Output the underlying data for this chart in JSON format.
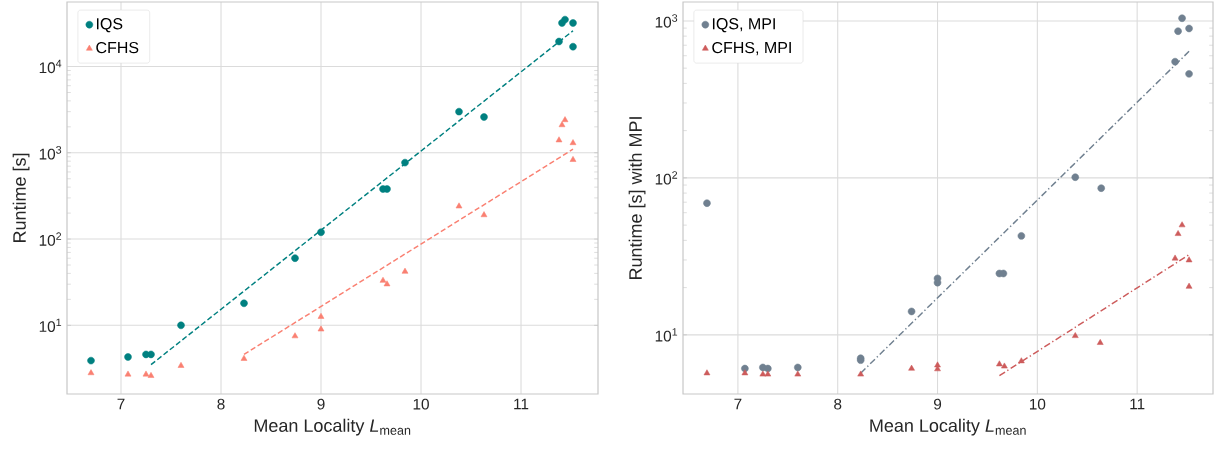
{
  "chart_data": [
    {
      "type": "scatter",
      "xlabel": "Mean Locality *L*$_{mean}$",
      "ylabel": "Runtime [s]",
      "log": "y",
      "grid": true,
      "legend": "top left",
      "xlim": [
        6.46,
        11.77
      ],
      "ylim": [
        1.6,
        56000
      ],
      "xticks": [
        7,
        8,
        9,
        10,
        11
      ],
      "yticks": [
        {
          "value": 10,
          "label": "10$^{1}$"
        },
        {
          "value": 100,
          "label": "10$^{2}$"
        },
        {
          "value": 1000,
          "label": "10$^{3}$"
        },
        {
          "value": 10000,
          "label": "10$^{4}$"
        }
      ],
      "series": [
        {
          "name": "IQS",
          "color": "#008080",
          "marker": "circle",
          "x": [
            6.7,
            7.07,
            7.25,
            7.3,
            7.6,
            8.23,
            8.74,
            9.0,
            9.62,
            9.66,
            9.84,
            10.38,
            10.63,
            11.38,
            11.41,
            11.44,
            11.52,
            11.52
          ],
          "values": [
            3.9,
            4.3,
            4.6,
            4.6,
            10,
            18,
            60,
            120,
            380,
            380,
            770,
            3000,
            2600,
            19500,
            32000,
            35000,
            32000,
            17000
          ]
        },
        {
          "name": "CFHS",
          "color": "#fa8072",
          "marker": "triangle",
          "x": [
            6.7,
            7.07,
            7.25,
            7.3,
            7.6,
            8.23,
            8.74,
            9.0,
            9.0,
            9.62,
            9.66,
            9.84,
            10.38,
            10.63,
            11.38,
            11.41,
            11.44,
            11.52,
            11.52
          ],
          "values": [
            2.8,
            2.7,
            2.7,
            2.6,
            3.4,
            4.1,
            7.5,
            12.6,
            9,
            33,
            30,
            42,
            240,
            190,
            1400,
            2100,
            2400,
            1300,
            830
          ]
        },
        {
          "type": "line",
          "color": "#008080",
          "line_style": "dashed",
          "x": [
            7.3,
            11.52
          ],
          "values": [
            3.5,
            26000
          ]
        },
        {
          "type": "line",
          "color": "#fa8072",
          "line_style": "dashed",
          "x": [
            8.23,
            11.52
          ],
          "values": [
            4.6,
            1100
          ]
        }
      ]
    },
    {
      "type": "scatter",
      "xlabel": "Mean Locality *L*$_{mean}$",
      "ylabel": "Runtime [s] with MPI",
      "log": "y",
      "grid": true,
      "legend": "top left",
      "xlim": [
        6.45,
        11.76
      ],
      "ylim": [
        4.2,
        1320
      ],
      "xticks": [
        7,
        8,
        9,
        10,
        11
      ],
      "yticks": [
        {
          "value": 10,
          "label": "10$^{1}$"
        },
        {
          "value": 100,
          "label": "10$^{2}$"
        },
        {
          "value": 1000,
          "label": "10$^{3}$"
        }
      ],
      "series": [
        {
          "name": "IQS, MPI",
          "color": "#708090",
          "marker": "circle",
          "x": [
            6.69,
            7.07,
            7.25,
            7.3,
            7.6,
            8.23,
            8.23,
            8.74,
            9.0,
            9.0,
            9.62,
            9.66,
            9.84,
            10.38,
            10.64,
            11.38,
            11.41,
            11.45,
            11.52,
            11.52
          ],
          "values": [
            69,
            6.1,
            6.2,
            6.1,
            6.2,
            7.1,
            6.9,
            14.1,
            22.9,
            21.5,
            24.6,
            24.6,
            42.7,
            101,
            86,
            550,
            860,
            1040,
            895,
            460
          ]
        },
        {
          "name": "CFHS, MPI",
          "color": "#cd5c5c",
          "marker": "triangle",
          "x": [
            6.69,
            7.07,
            7.25,
            7.3,
            7.6,
            8.23,
            8.74,
            9.0,
            9.0,
            9.62,
            9.67,
            9.84,
            10.38,
            10.63,
            11.38,
            11.41,
            11.45,
            11.52,
            11.52
          ],
          "values": [
            5.7,
            5.7,
            5.6,
            5.6,
            5.6,
            5.6,
            6.1,
            6.4,
            6.05,
            6.5,
            6.3,
            6.8,
            9.85,
            8.9,
            30.7,
            44,
            50,
            29.9,
            20.3
          ]
        },
        {
          "type": "line",
          "color": "#708090",
          "line_style": "dashdot",
          "x": [
            8.23,
            11.52
          ],
          "values": [
            5.7,
            640
          ]
        },
        {
          "type": "line",
          "color": "#cd5c5c",
          "line_style": "dashdot",
          "x": [
            9.62,
            11.52
          ],
          "values": [
            5.5,
            32.4
          ]
        }
      ]
    }
  ]
}
